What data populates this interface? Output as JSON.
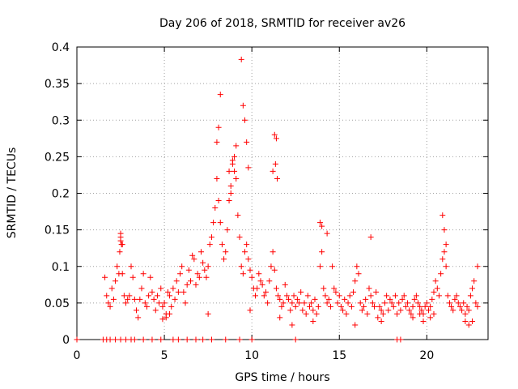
{
  "chart_data": {
    "type": "scatter",
    "title": "Day 206 of 2018, SRMTID for receiver av26",
    "xlabel": "GPS time / hours",
    "ylabel": "SRMTID / TECUs",
    "xlim": [
      0,
      23.5
    ],
    "ylim": [
      0,
      0.4
    ],
    "xticks": [
      0,
      5,
      10,
      15,
      20
    ],
    "xtick_labels": [
      "0",
      "5",
      "10",
      "15",
      "20"
    ],
    "yticks": [
      0,
      0.05,
      0.1,
      0.15,
      0.2,
      0.25,
      0.3,
      0.35,
      0.4
    ],
    "ytick_labels": [
      "0",
      "0.05",
      "0.1",
      "0.15",
      "0.2",
      "0.25",
      "0.3",
      "0.35",
      "0.4"
    ],
    "grid": true,
    "marker": "plus",
    "series": [
      {
        "name": "SRMTID",
        "color": "#ff0000",
        "x": [
          0.0,
          1.5,
          1.7,
          1.9,
          2.2,
          2.5,
          2.8,
          3.1,
          3.3,
          3.8,
          4.3,
          4.8,
          5.5,
          5.8,
          6.3,
          6.8,
          7.2,
          7.7,
          8.5,
          9.3,
          10.0,
          12.5,
          18.3,
          18.5,
          1.6,
          1.7,
          1.8,
          1.9,
          2.0,
          2.1,
          2.2,
          2.3,
          2.4,
          2.45,
          2.5,
          2.55,
          2.6,
          2.7,
          2.8,
          2.9,
          3.0,
          3.1,
          3.2,
          3.3,
          3.4,
          3.5,
          3.6,
          3.7,
          3.8,
          3.9,
          4.0,
          4.1,
          4.2,
          4.3,
          4.4,
          4.5,
          4.6,
          4.7,
          4.8,
          4.9,
          5.0,
          5.1,
          5.2,
          5.3,
          5.4,
          5.5,
          5.6,
          5.7,
          5.8,
          5.9,
          6.0,
          6.1,
          6.2,
          6.3,
          6.4,
          6.5,
          6.6,
          6.7,
          6.8,
          6.9,
          7.0,
          7.1,
          7.2,
          7.3,
          7.4,
          7.5,
          7.6,
          7.7,
          7.8,
          7.9,
          8.0,
          8.1,
          8.2,
          8.3,
          8.4,
          8.5,
          8.6,
          8.7,
          8.8,
          8.9,
          9.0,
          9.1,
          9.2,
          9.3,
          9.4,
          9.5,
          9.6,
          9.7,
          9.8,
          9.9,
          10.0,
          10.1,
          10.2,
          10.3,
          10.4,
          10.5,
          10.6,
          10.7,
          10.8,
          10.9,
          11.0,
          11.1,
          11.2,
          11.3,
          11.4,
          11.5,
          11.6,
          11.7,
          11.8,
          11.9,
          12.0,
          12.1,
          12.2,
          12.3,
          12.4,
          12.5,
          12.6,
          12.7,
          12.8,
          12.9,
          13.0,
          13.1,
          13.2,
          13.3,
          13.4,
          13.5,
          13.6,
          13.7,
          13.8,
          13.9,
          14.0,
          14.1,
          14.2,
          14.3,
          14.4,
          14.5,
          14.6,
          14.7,
          14.8,
          14.9,
          15.0,
          15.1,
          15.2,
          15.3,
          15.4,
          15.5,
          15.6,
          15.7,
          15.8,
          15.9,
          16.0,
          16.1,
          16.2,
          16.3,
          16.4,
          16.5,
          16.6,
          16.7,
          16.8,
          16.9,
          17.0,
          17.1,
          17.2,
          17.3,
          17.4,
          17.5,
          17.6,
          17.7,
          17.8,
          17.9,
          18.0,
          18.1,
          18.2,
          18.3,
          18.4,
          18.5,
          18.6,
          18.7,
          18.8,
          18.9,
          19.0,
          19.1,
          19.2,
          19.3,
          19.4,
          19.5,
          19.6,
          19.7,
          19.8,
          19.9,
          20.0,
          20.1,
          20.2,
          20.3,
          20.4,
          20.5,
          20.6,
          20.7,
          20.8,
          20.9,
          21.0,
          21.1,
          21.2,
          21.3,
          21.4,
          21.5,
          21.6,
          21.7,
          21.8,
          21.9,
          22.0,
          22.1,
          22.2,
          22.3,
          22.4,
          22.5,
          22.6,
          22.7,
          22.8,
          22.9,
          2.5,
          2.5,
          2.6,
          8.2,
          8.1,
          8.0,
          9.4,
          9.5,
          9.6,
          9.1,
          9.0,
          8.9,
          8.8,
          8.7,
          9.7,
          9.8,
          11.3,
          11.4,
          11.35,
          11.2,
          11.45,
          13.9,
          14.0,
          14.3,
          16.8,
          20.9,
          21.0,
          21.1,
          22.9,
          5.1,
          4.9,
          5.3,
          7.5,
          9.9,
          11.6,
          12.3,
          13.5,
          15.9,
          17.4,
          19.2,
          19.6,
          19.8,
          20.2,
          20.4,
          22.2,
          22.4,
          22.6
        ],
        "y": [
          0,
          0,
          0,
          0,
          0,
          0,
          0,
          0,
          0,
          0,
          0,
          0,
          0,
          0,
          0,
          0,
          0,
          0,
          0,
          0,
          0,
          0,
          0,
          0,
          0.085,
          0.06,
          0.05,
          0.045,
          0.07,
          0.055,
          0.08,
          0.1,
          0.09,
          0.12,
          0.14,
          0.13,
          0.09,
          0.06,
          0.05,
          0.055,
          0.06,
          0.1,
          0.085,
          0.055,
          0.04,
          0.03,
          0.055,
          0.07,
          0.09,
          0.05,
          0.045,
          0.06,
          0.085,
          0.065,
          0.055,
          0.04,
          0.06,
          0.05,
          0.07,
          0.045,
          0.05,
          0.035,
          0.065,
          0.06,
          0.045,
          0.07,
          0.055,
          0.08,
          0.065,
          0.09,
          0.1,
          0.065,
          0.05,
          0.075,
          0.095,
          0.08,
          0.115,
          0.11,
          0.075,
          0.09,
          0.085,
          0.12,
          0.105,
          0.095,
          0.085,
          0.1,
          0.13,
          0.14,
          0.16,
          0.18,
          0.22,
          0.19,
          0.16,
          0.13,
          0.11,
          0.12,
          0.15,
          0.19,
          0.21,
          0.24,
          0.23,
          0.22,
          0.17,
          0.14,
          0.1,
          0.09,
          0.12,
          0.13,
          0.11,
          0.095,
          0.085,
          0.07,
          0.06,
          0.07,
          0.09,
          0.08,
          0.075,
          0.06,
          0.065,
          0.05,
          0.08,
          0.1,
          0.12,
          0.095,
          0.07,
          0.06,
          0.055,
          0.045,
          0.05,
          0.075,
          0.06,
          0.055,
          0.04,
          0.05,
          0.06,
          0.045,
          0.055,
          0.05,
          0.065,
          0.04,
          0.05,
          0.035,
          0.06,
          0.045,
          0.05,
          0.04,
          0.055,
          0.035,
          0.045,
          0.1,
          0.12,
          0.07,
          0.06,
          0.05,
          0.055,
          0.045,
          0.1,
          0.07,
          0.065,
          0.05,
          0.06,
          0.045,
          0.04,
          0.055,
          0.035,
          0.05,
          0.06,
          0.045,
          0.065,
          0.08,
          0.1,
          0.09,
          0.05,
          0.04,
          0.045,
          0.055,
          0.035,
          0.07,
          0.06,
          0.05,
          0.045,
          0.065,
          0.03,
          0.045,
          0.04,
          0.035,
          0.05,
          0.06,
          0.04,
          0.055,
          0.05,
          0.045,
          0.06,
          0.035,
          0.05,
          0.04,
          0.055,
          0.06,
          0.045,
          0.05,
          0.04,
          0.035,
          0.045,
          0.055,
          0.06,
          0.05,
          0.045,
          0.04,
          0.035,
          0.045,
          0.05,
          0.04,
          0.045,
          0.055,
          0.065,
          0.08,
          0.07,
          0.06,
          0.09,
          0.11,
          0.12,
          0.1,
          0.06,
          0.05,
          0.045,
          0.04,
          0.055,
          0.06,
          0.05,
          0.045,
          0.04,
          0.05,
          0.035,
          0.045,
          0.04,
          0.06,
          0.07,
          0.08,
          0.05,
          0.045,
          0.145,
          0.135,
          0.13,
          0.335,
          0.29,
          0.27,
          0.383,
          0.32,
          0.3,
          0.265,
          0.25,
          0.245,
          0.2,
          0.23,
          0.27,
          0.235,
          0.28,
          0.275,
          0.24,
          0.23,
          0.22,
          0.16,
          0.155,
          0.145,
          0.14,
          0.17,
          0.15,
          0.13,
          0.1,
          0.03,
          0.028,
          0.035,
          0.035,
          0.04,
          0.03,
          0.02,
          0.025,
          0.02,
          0.025,
          0.03,
          0.035,
          0.025,
          0.03,
          0.035,
          0.025,
          0.02,
          0.025
        ]
      }
    ]
  }
}
